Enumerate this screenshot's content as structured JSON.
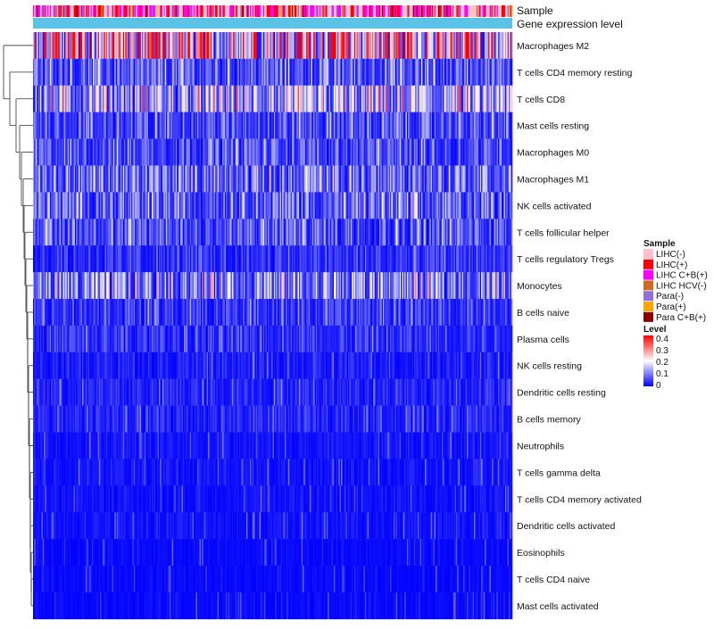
{
  "chart_data": {
    "type": "heatmap",
    "title": "",
    "annotation_rows": [
      "Sample",
      "Gene expression level"
    ],
    "annotation_color": "#5bc3e6",
    "row_labels": [
      "Macrophages M2",
      "T cells CD4 memory resting",
      "T cells CD8",
      "Mast cells resting",
      "Macrophages M0",
      "Macrophages M1",
      "NK cells activated",
      "T cells follicular helper",
      "T cells regulatory  Tregs",
      "Monocytes",
      "B cells naive",
      "Plasma cells",
      "NK cells resting",
      "Dendritic cells resting",
      "B cells memory",
      "Neutrophils",
      "T cells gamma delta",
      "T cells CD4 memory activated",
      "Dendritic cells activated",
      "Eosinophils",
      "T cells CD4 naive",
      "Mast cells activated"
    ],
    "row_mean_level": [
      0.3,
      0.09,
      0.16,
      0.08,
      0.08,
      0.11,
      0.1,
      0.09,
      0.05,
      0.13,
      0.06,
      0.05,
      0.03,
      0.04,
      0.04,
      0.02,
      0.02,
      0.02,
      0.02,
      0.01,
      0.01,
      0.01
    ],
    "columns": 400,
    "sample_legend": {
      "title": "Sample",
      "entries": [
        {
          "label": "LIHC(-)",
          "color": "#ffc0cb"
        },
        {
          "label": "LIHC(+)",
          "color": "#ff0000"
        },
        {
          "label": "LIHC C+B(+)",
          "color": "#ff00ff"
        },
        {
          "label": "LIHC HCV(-)",
          "color": "#d2691e"
        },
        {
          "label": "Para(-)",
          "color": "#9370db"
        },
        {
          "label": "Para(+)",
          "color": "#ffa500"
        },
        {
          "label": "Para C+B(+)",
          "color": "#8b0000"
        }
      ]
    },
    "level_legend": {
      "title": "Level",
      "ticks": [
        "0.4",
        "0.3",
        "0.2",
        "0.1",
        "0"
      ],
      "range": [
        0,
        0.4
      ],
      "colors": [
        "#0000ff",
        "#ffffff",
        "#ff0000"
      ]
    }
  }
}
